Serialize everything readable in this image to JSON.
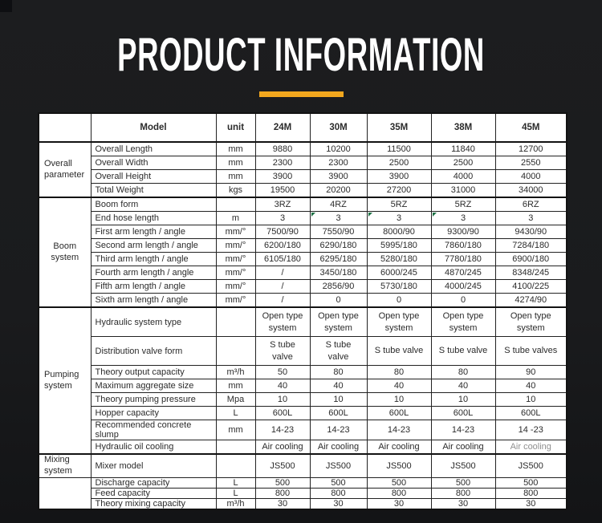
{
  "colors": {
    "accent": "#F2A71E",
    "page_background": "#1B1C1E",
    "corner_square": "#0E0F12",
    "table_text": "#2B2B2B",
    "muted_text": "#8F8F8F",
    "marker_green": "#1E7145"
  },
  "header": {
    "title": "PRODUCT INFORMATION"
  },
  "table": {
    "columns": [
      "",
      "Model",
      "unit",
      "24M",
      "30M",
      "35M",
      "38M",
      "45M"
    ],
    "groups": [
      {
        "label": "Overall parameter",
        "rows": [
          {
            "label": "Overall Length",
            "unit": "mm",
            "values": [
              "9880",
              "10200",
              "11500",
              "11840",
              "12700"
            ],
            "h": "normal"
          },
          {
            "label": "Overall Width",
            "unit": "mm",
            "values": [
              "2300",
              "2300",
              "2500",
              "2500",
              "2550"
            ],
            "h": "normal"
          },
          {
            "label": "Overall Height",
            "unit": "mm",
            "values": [
              "3900",
              "3900",
              "3900",
              "4000",
              "4000"
            ],
            "h": "normal"
          },
          {
            "label": "Total Weight",
            "unit": "kgs",
            "values": [
              "19500",
              "20200",
              "27200",
              "31000",
              "34000"
            ],
            "h": "normal"
          }
        ]
      },
      {
        "label": "Boom system",
        "rows": [
          {
            "label": "Boom form",
            "unit": "",
            "values": [
              "3RZ",
              "4RZ",
              "5RZ",
              "5RZ",
              "6RZ"
            ],
            "h": "normal"
          },
          {
            "label": "End hose length",
            "unit": "m",
            "values": [
              "3",
              "3",
              "3",
              "3",
              "3"
            ],
            "h": "normal",
            "markers": [
              1,
              2,
              3
            ]
          },
          {
            "label": "First arm length / angle",
            "unit": "mm/°",
            "values": [
              "7500/90",
              "7550/90",
              "8000/90",
              "9300/90",
              "9430/90"
            ],
            "h": "normal"
          },
          {
            "label": "Second arm length / angle",
            "unit": "mm/°",
            "values": [
              "6200/180",
              "6290/180",
              "5995/180",
              "7860/180",
              "7284/180"
            ],
            "h": "normal"
          },
          {
            "label": "Third arm length / angle",
            "unit": "mm/°",
            "values": [
              "6105/180",
              "6295/180",
              "5280/180",
              "7780/180",
              "6900/180"
            ],
            "h": "normal"
          },
          {
            "label": "Fourth arm length / angle",
            "unit": "mm/°",
            "values": [
              "/",
              "3450/180",
              "6000/245",
              "4870/245",
              "8348/245"
            ],
            "h": "normal"
          },
          {
            "label": "Fifth arm length / angle",
            "unit": "mm/°",
            "values": [
              "/",
              "2856/90",
              "5730/180",
              "4000/245",
              "4100/225"
            ],
            "h": "normal"
          },
          {
            "label": "Sixth arm length / angle",
            "unit": "mm/°",
            "values": [
              "/",
              "0",
              "0",
              "0",
              "4274/90"
            ],
            "h": "normal"
          }
        ]
      },
      {
        "label": "Pumping system",
        "rows": [
          {
            "label": "Hydraulic system type",
            "unit": "",
            "values": [
              "Open type system",
              "Open type system",
              "Open type system",
              "Open type system",
              "Open type system"
            ],
            "h": "tall"
          },
          {
            "label": "Distribution valve form",
            "unit": "",
            "values": [
              "S tube valve",
              "S tube valve",
              "S tube valve",
              "S tube valve",
              "S tube valves"
            ],
            "h": "tall"
          },
          {
            "label": "Theory output capacity",
            "unit": "m³/h",
            "values": [
              "50",
              "80",
              "80",
              "80",
              "90"
            ],
            "h": "normal"
          },
          {
            "label": "Maximum aggregate size",
            "unit": "mm",
            "values": [
              "40",
              "40",
              "40",
              "40",
              "40"
            ],
            "h": "normal"
          },
          {
            "label": "Theory pumping pressure",
            "unit": "Mpa",
            "values": [
              "10",
              "10",
              "10",
              "10",
              "10"
            ],
            "h": "normal"
          },
          {
            "label": "Hopper capacity",
            "unit": "L",
            "values": [
              "600L",
              "600L",
              "600L",
              "600L",
              "600L"
            ],
            "h": "normal"
          },
          {
            "label": "Recommended concrete slump",
            "unit": "mm",
            "values": [
              "14-23",
              "14-23",
              "14-23",
              "14-23",
              "14 -23"
            ],
            "h": "normal"
          },
          {
            "label": "Hydraulic oil cooling",
            "unit": "",
            "values": [
              "Air cooling",
              "Air cooling",
              "Air cooling",
              "Air cooling",
              "Air cooling"
            ],
            "h": "normal",
            "muted": [
              4
            ]
          }
        ]
      },
      {
        "label": "Mixing system",
        "label_rows": 1,
        "rows": [
          {
            "label": "Mixer model",
            "unit": "",
            "values": [
              "JS500",
              "JS500",
              "JS500",
              "JS500",
              "JS500"
            ],
            "h": "mixer"
          },
          {
            "label": "Discharge capacity",
            "unit": "L",
            "values": [
              "500",
              "500",
              "500",
              "500",
              "500"
            ],
            "h": "thin"
          },
          {
            "label": "Feed capacity",
            "unit": "L",
            "values": [
              "800",
              "800",
              "800",
              "800",
              "800"
            ],
            "h": "thin"
          },
          {
            "label": "Theory mixing capacity",
            "unit": "m³/h",
            "values": [
              "30",
              "30",
              "30",
              "30",
              "30"
            ],
            "h": "thin"
          }
        ]
      }
    ]
  }
}
